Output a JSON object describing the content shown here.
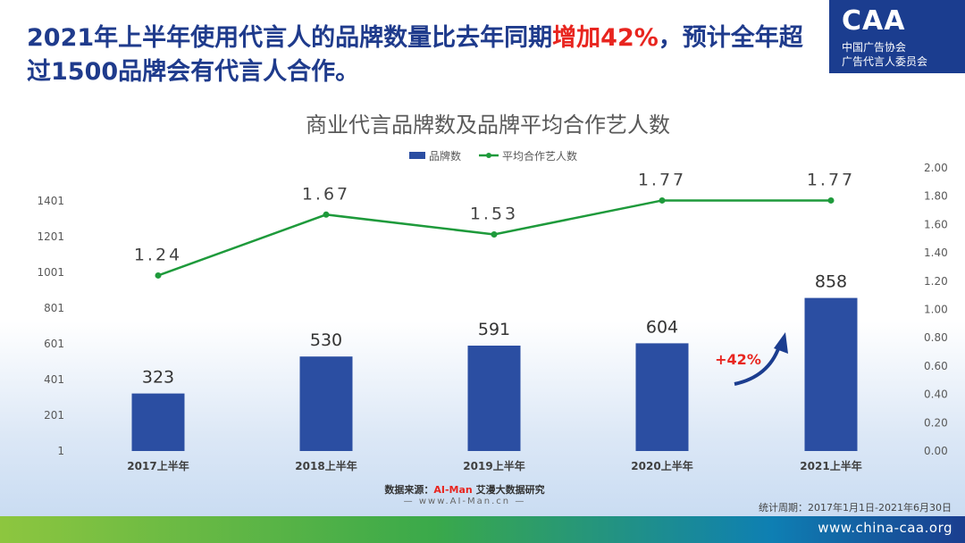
{
  "headline": {
    "part1": "2021年上半年使用代言人的品牌数量比去年同期",
    "highlight": "增加42%",
    "part2": "，预计全年超过1500品牌会有代言人合作。"
  },
  "logo": {
    "mark": "CAA",
    "line1": "中国广告协会",
    "line2": "广告代言人委员会"
  },
  "footer": {
    "source_prefix": "数据来源：",
    "source_brand": "AI-Man",
    "source_suffix": " 艾漫大数据研究",
    "source_url": "— www.AI-Man.cn —",
    "period": "统计周期：2017年1月1日-2021年6月30日",
    "site_url": "www.china-caa.org"
  },
  "colors": {
    "bar": "#2b4ea2",
    "line": "#1e9a3b",
    "headline": "#1f3b8c",
    "highlight": "#e8251f",
    "arrow": "#1b3d8f"
  },
  "chart_data": {
    "type": "bar+line",
    "title": "商业代言品牌数及品牌平均合作艺人数",
    "categories": [
      "2017上半年",
      "2018上半年",
      "2019上半年",
      "2020上半年",
      "2021上半年"
    ],
    "series": [
      {
        "name": "品牌数",
        "type": "bar",
        "axis": "left",
        "values": [
          323,
          530,
          591,
          604,
          858
        ]
      },
      {
        "name": "平均合作艺人数",
        "type": "line",
        "axis": "right",
        "values": [
          1.24,
          1.67,
          1.53,
          1.77,
          1.77
        ]
      }
    ],
    "left_axis": {
      "ticks": [
        "1",
        "201",
        "401",
        "601",
        "801",
        "1001",
        "1201",
        "1401"
      ],
      "min": 1,
      "max": 1601
    },
    "right_axis": {
      "ticks": [
        "0.00",
        "0.20",
        "0.40",
        "0.60",
        "0.80",
        "1.00",
        "1.20",
        "1.40",
        "1.60",
        "1.80",
        "2.00"
      ],
      "min": 0,
      "max": 2
    },
    "annotation": "+42%",
    "legend_position": "top-center",
    "grid": false
  }
}
